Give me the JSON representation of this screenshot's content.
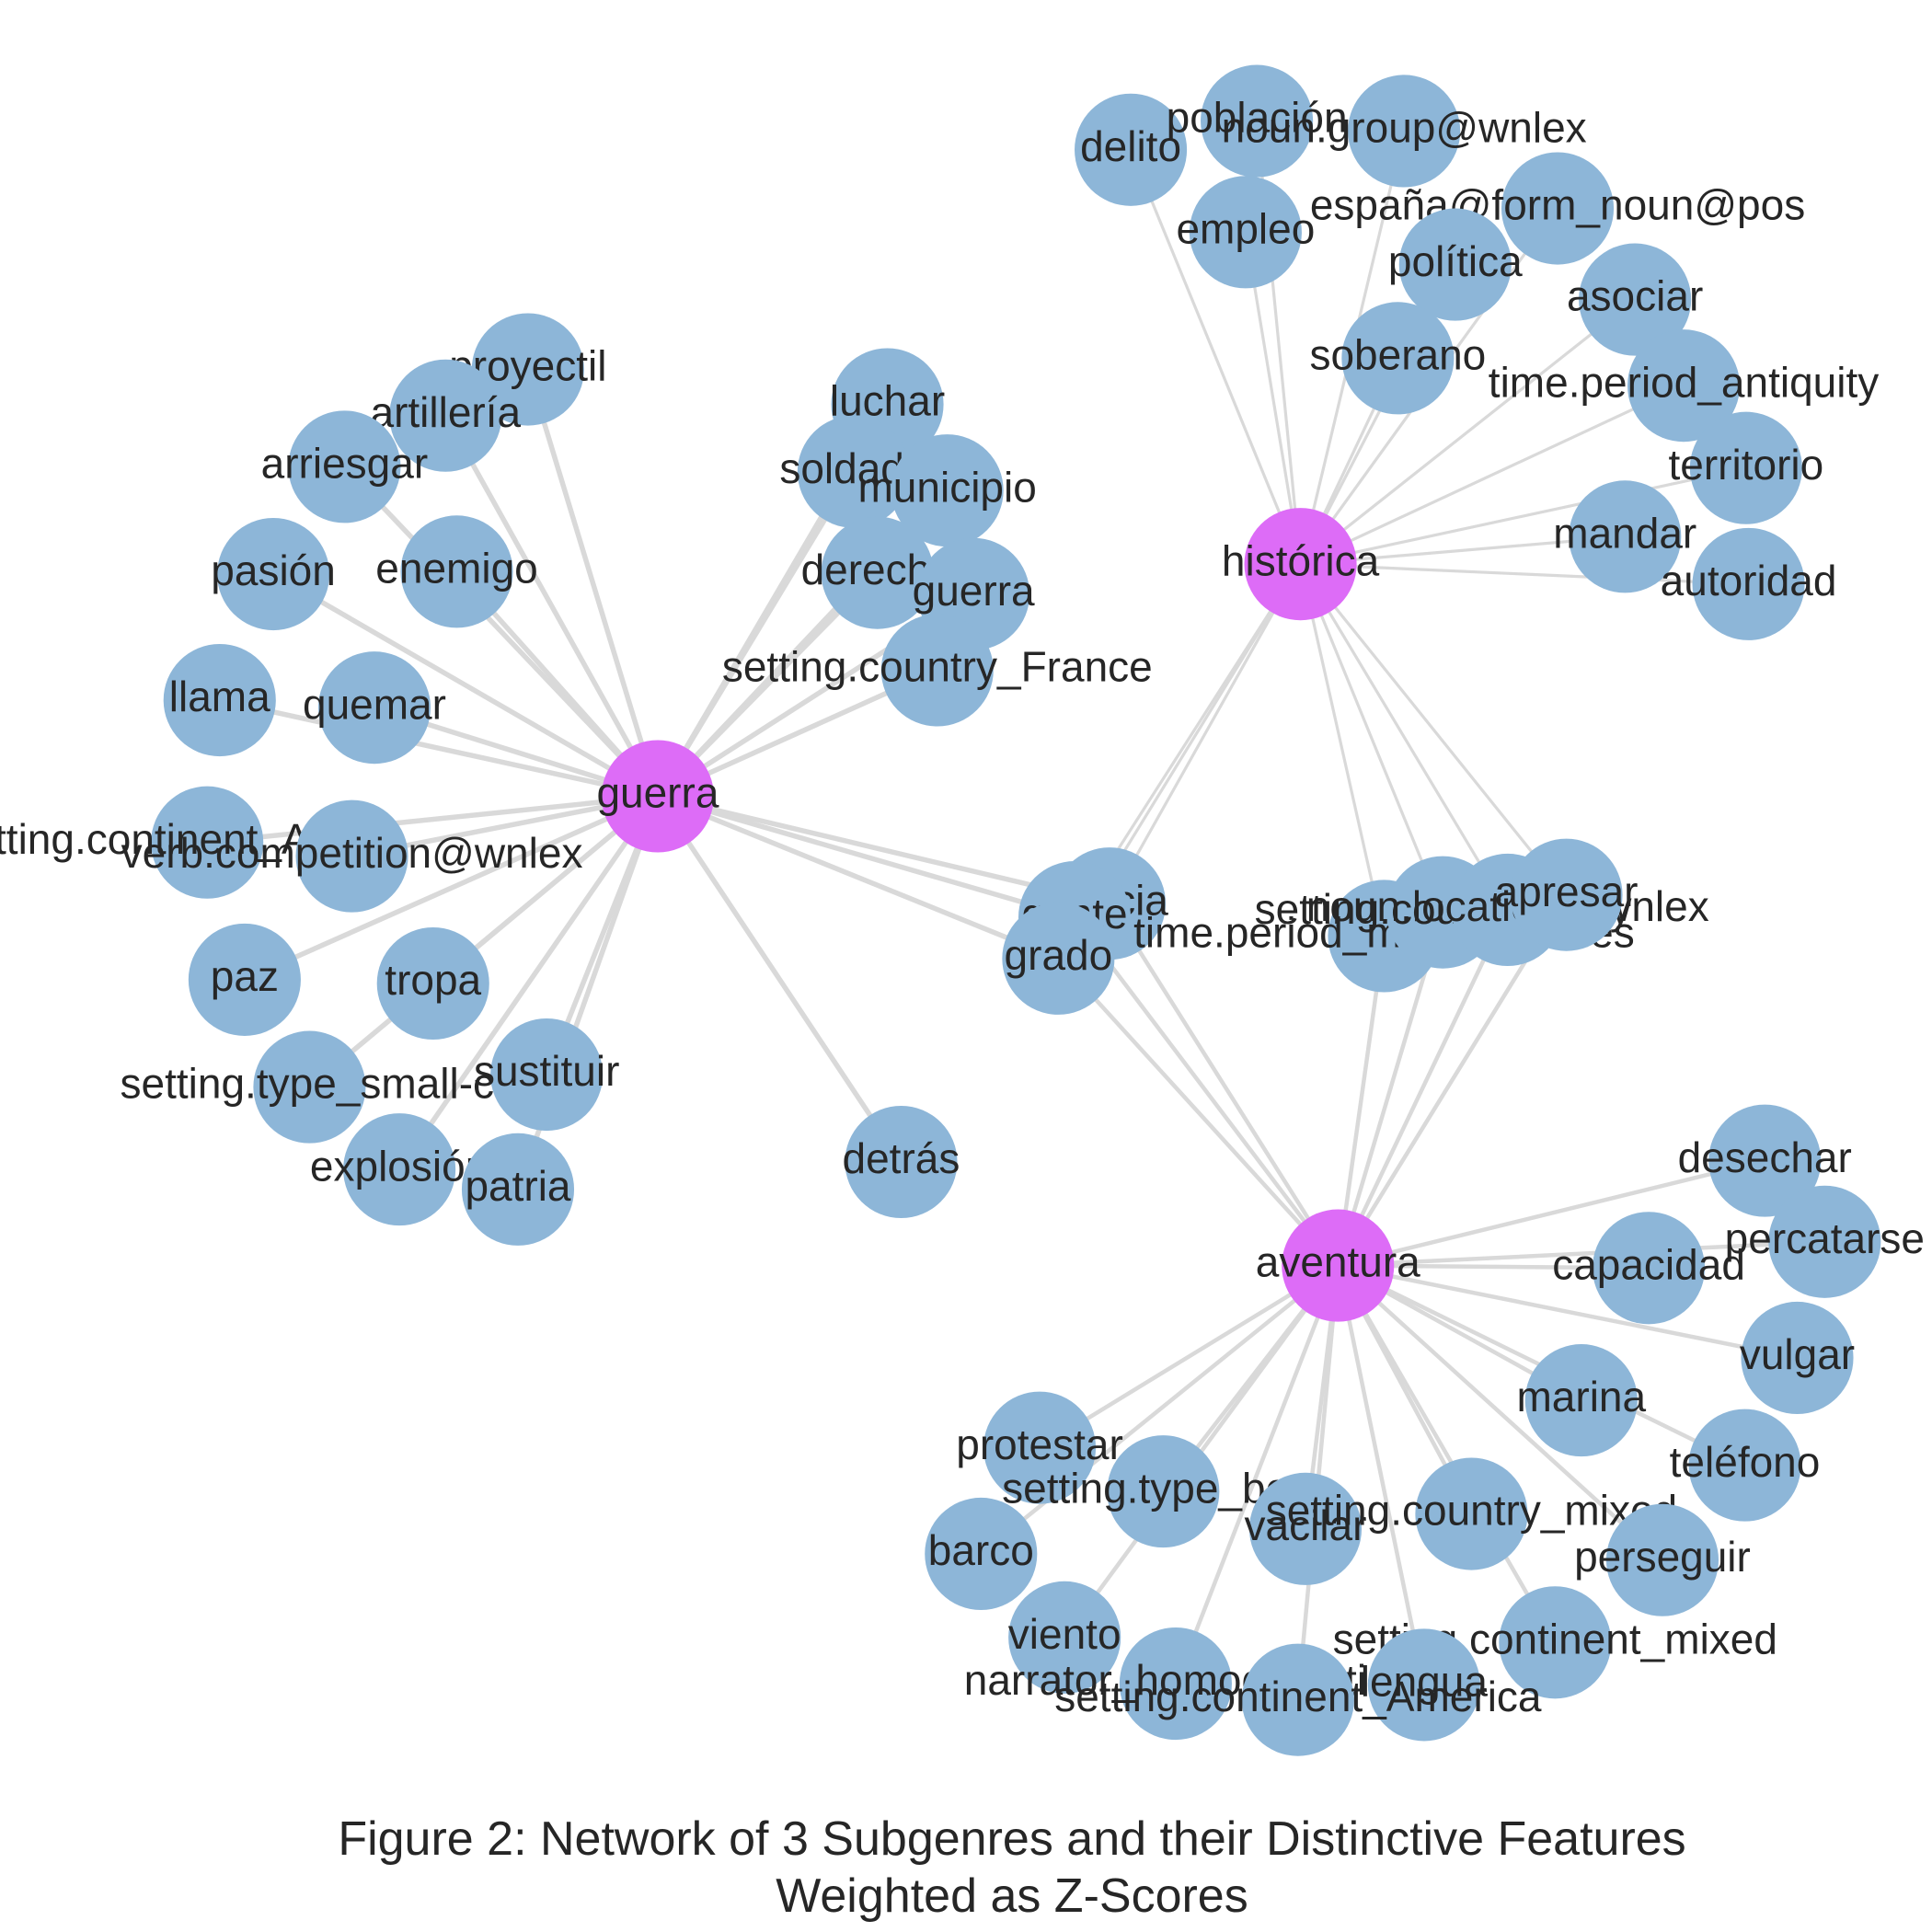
{
  "caption": {
    "line1": "Figure 2: Network of 3 Subgenres and their Distinctive Features",
    "line2": "Weighted as Z-Scores"
  },
  "colors": {
    "hub": "#dd6cf7",
    "feature": "#8db6d8",
    "edge": "#d9d9d9",
    "text": "#262626"
  },
  "hubs": [
    "guerra",
    "histórica",
    "aventura"
  ],
  "features": {
    "guerra": [
      "proyectil",
      "artillería",
      "arriesgar",
      "enemigo",
      "pasión",
      "llama",
      "quemar",
      "setting.continent_Africa",
      "verb.competition@wnlex",
      "paz",
      "tropa",
      "setting.type_small-city",
      "sustituir",
      "explosión",
      "patria",
      "luchar",
      "soldado",
      "municipio",
      "derecho",
      "guerra",
      "setting.country_France",
      "detrás"
    ],
    "histórica": [
      "delito",
      "población",
      "noun.group@wnlex",
      "empleo",
      "españa@form_noun@pos",
      "política",
      "soberano",
      "asociar",
      "time.period_antiquity",
      "territorio",
      "mandar",
      "autoridad"
    ],
    "aventura": [
      "desechar",
      "percatarse",
      "capacidad",
      "vulgar",
      "marina",
      "teléfono",
      "protestar",
      "setting.type_boat",
      "vacilar",
      "setting.country_mixed",
      "perseguir",
      "barco",
      "viento",
      "setting.continent_mixed",
      "narrator_homodiegetic",
      "lengua",
      "setting.continent_America"
    ],
    "shared": [
      "milicia",
      "gente",
      "grado",
      "time.period_modern_times",
      "setting.country_Italy",
      "noun.location@wnlex",
      "apresar"
    ]
  }
}
